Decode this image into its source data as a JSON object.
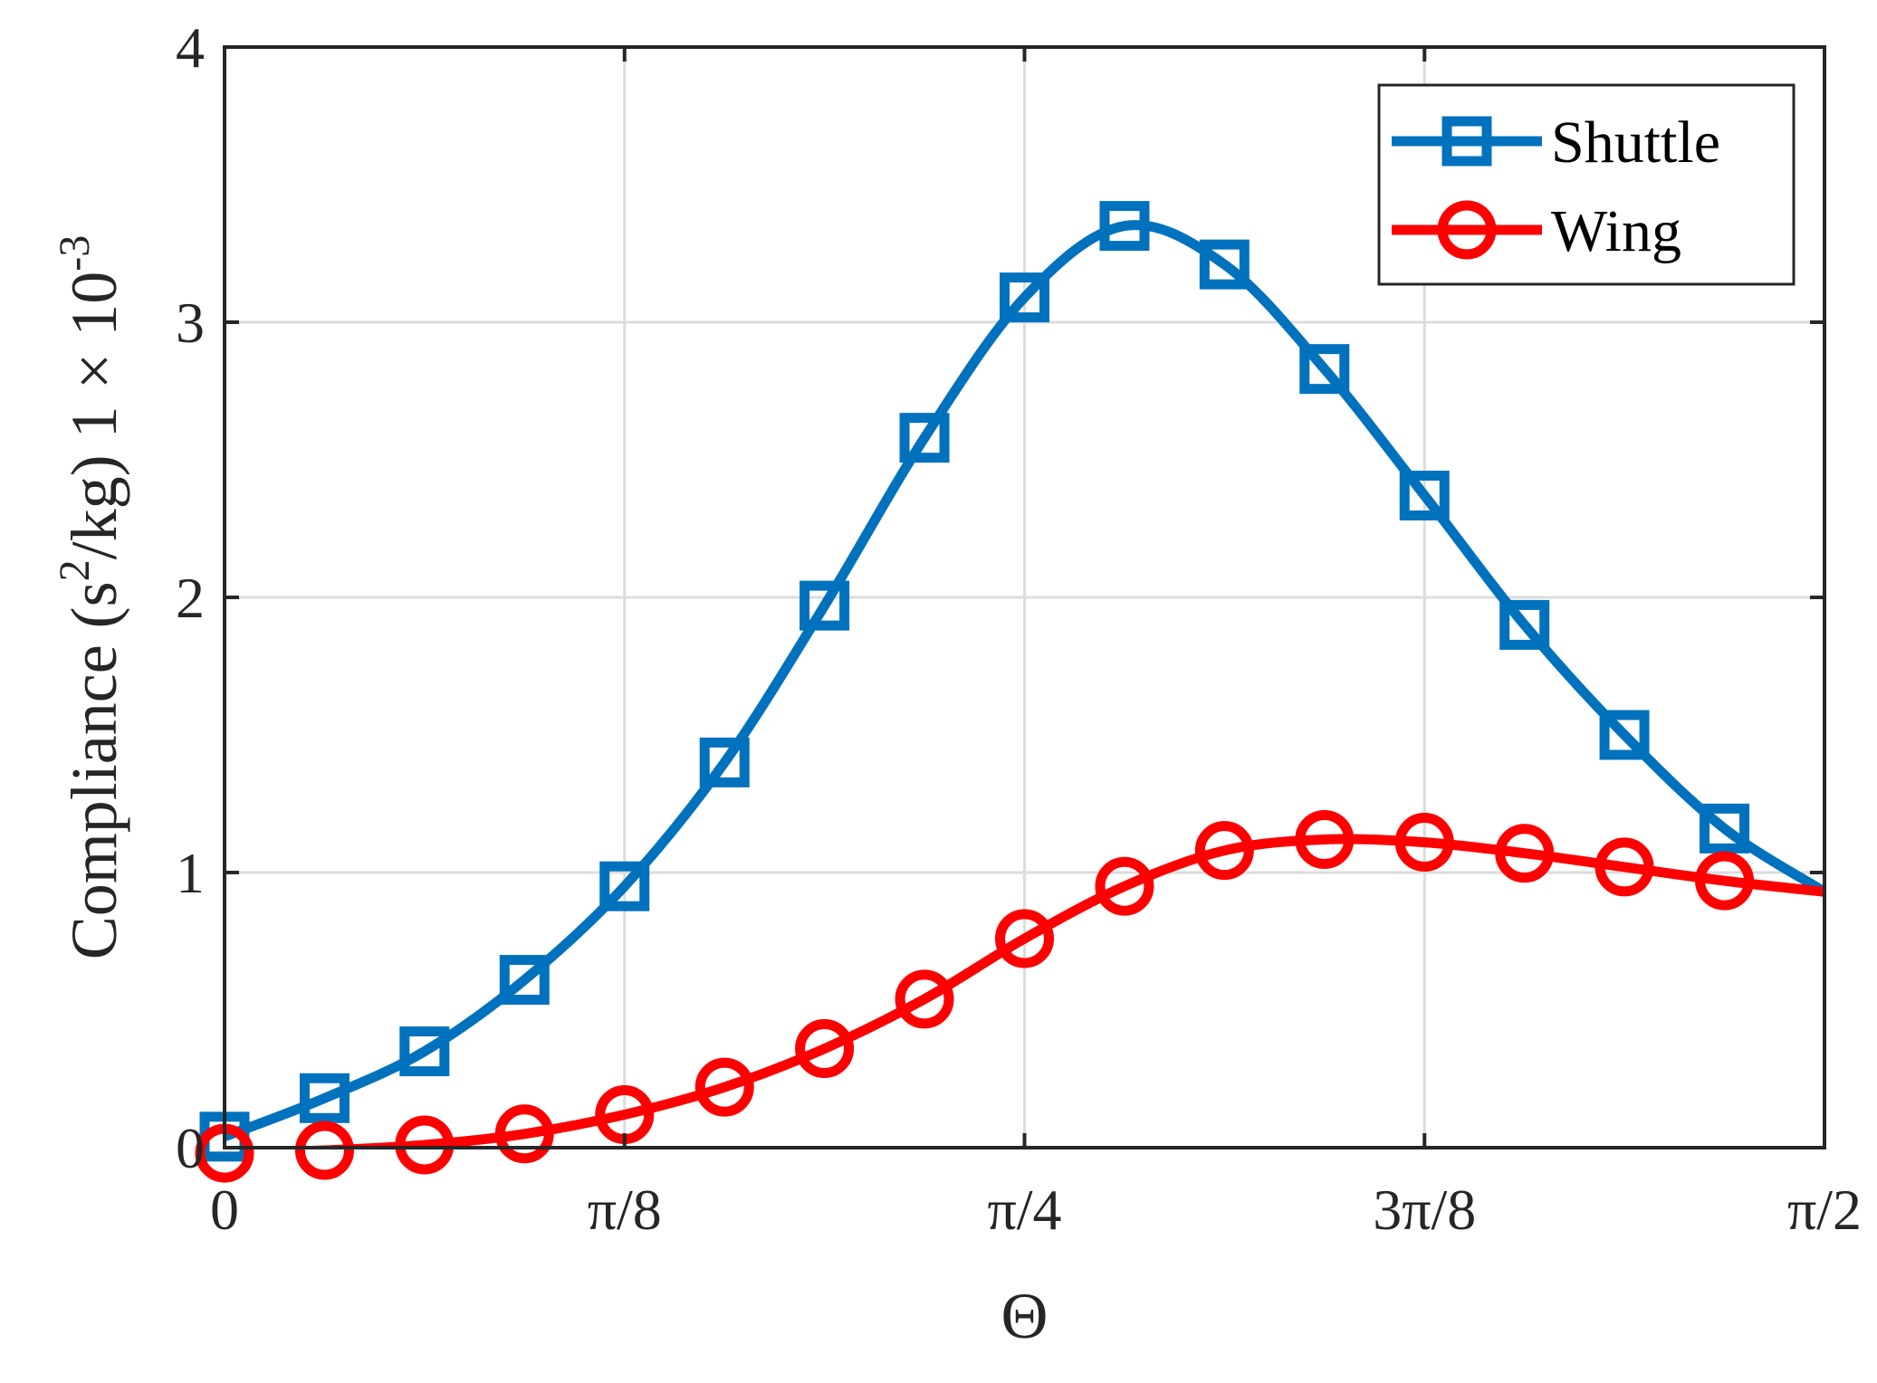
{
  "chart_data": {
    "type": "line",
    "title": "",
    "xlabel": "Θ",
    "ylabel": {
      "main": "Compliance (s",
      "sup": "2",
      "rest": "/kg) 1 × 10",
      "exp": "-3"
    },
    "xlim": [
      0,
      1.5708
    ],
    "ylim": [
      0,
      4
    ],
    "xticks": [
      {
        "value": 0,
        "label": "0"
      },
      {
        "value": 0.3927,
        "label": "π/8"
      },
      {
        "value": 0.7854,
        "label": "π/4"
      },
      {
        "value": 1.1781,
        "label": "3π/8"
      },
      {
        "value": 1.5708,
        "label": "π/2"
      }
    ],
    "yticks": [
      {
        "value": 0,
        "label": "0"
      },
      {
        "value": 1,
        "label": "1"
      },
      {
        "value": 2,
        "label": "2"
      },
      {
        "value": 3,
        "label": "3"
      },
      {
        "value": 4,
        "label": "4"
      }
    ],
    "grid": true,
    "legend_position": "top-right",
    "series": [
      {
        "name": "Shuttle",
        "color": "#0072BD",
        "marker": "square",
        "x": [
          0,
          0.0982,
          0.1963,
          0.2945,
          0.3927,
          0.4909,
          0.589,
          0.6872,
          0.7854,
          0.8836,
          0.9817,
          1.0799,
          1.1781,
          1.2763,
          1.3744,
          1.4726,
          1.5708
        ],
        "y": [
          0.04,
          0.18,
          0.35,
          0.61,
          0.95,
          1.4,
          1.97,
          2.58,
          3.09,
          3.35,
          3.21,
          2.83,
          2.37,
          1.9,
          1.5,
          1.16,
          0.93
        ]
      },
      {
        "name": "Wing",
        "color": "#FF0000",
        "marker": "circle",
        "x": [
          0,
          0.0982,
          0.1963,
          0.2945,
          0.3927,
          0.4909,
          0.589,
          0.6872,
          0.7854,
          0.8836,
          0.9817,
          1.0799,
          1.1781,
          1.2763,
          1.3744,
          1.4726,
          1.5708
        ],
        "y": [
          -0.02,
          -0.01,
          0.01,
          0.05,
          0.12,
          0.22,
          0.36,
          0.54,
          0.76,
          0.95,
          1.08,
          1.12,
          1.11,
          1.07,
          1.02,
          0.97,
          0.93
        ]
      }
    ]
  }
}
